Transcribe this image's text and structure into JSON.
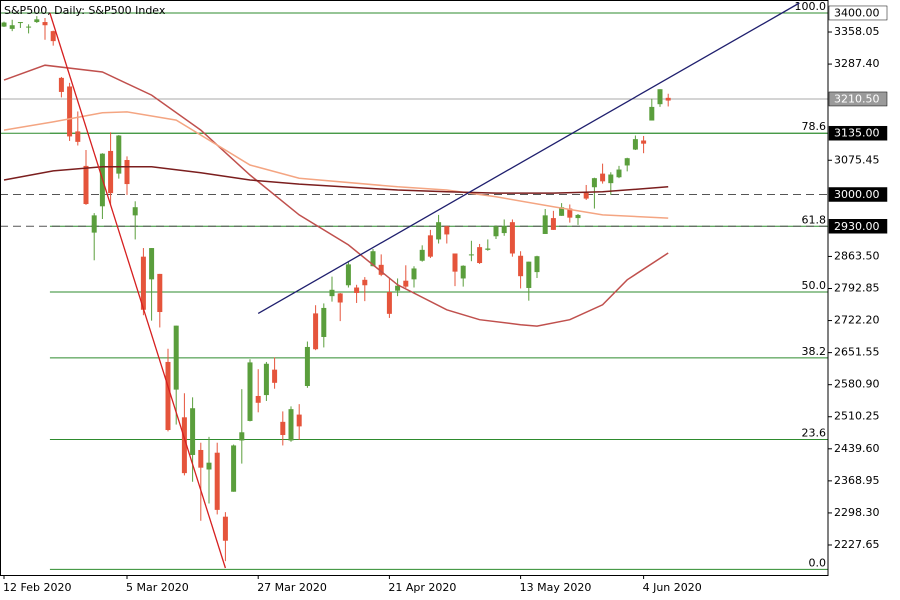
{
  "chart_data": {
    "type": "candlestick",
    "title": "S&P500, Daily:  S&P500 Index",
    "categories": [
      "12 Feb 2020",
      null,
      null,
      null,
      null,
      null,
      null,
      null,
      null,
      null,
      null,
      null,
      null,
      null,
      null,
      "5 Mar 2020",
      null,
      null,
      null,
      null,
      null,
      null,
      null,
      null,
      null,
      null,
      null,
      null,
      null,
      null,
      null,
      "27 Mar 2020",
      null,
      null,
      null,
      null,
      null,
      null,
      null,
      null,
      null,
      null,
      null,
      null,
      null,
      null,
      null,
      "21 Apr 2020",
      null,
      null,
      null,
      null,
      null,
      null,
      null,
      null,
      null,
      null,
      null,
      null,
      null,
      null,
      null,
      "13 May 2020",
      null,
      null,
      null,
      null,
      null,
      null,
      null,
      null,
      null,
      null,
      null,
      null,
      null,
      null,
      "4 Jun 2020",
      null,
      null,
      null
    ],
    "open": [
      3370,
      3365,
      3378,
      3369,
      3380,
      3380,
      3360,
      3257,
      3238,
      3139,
      3063,
      2916,
      2974,
      3096,
      3046,
      3076,
      2954,
      2863,
      2813,
      2825,
      2631,
      2570,
      2509,
      2426,
      2437,
      2394,
      2431,
      2290,
      2345,
      2458,
      2501,
      2556,
      2558,
      2614,
      2499,
      2458,
      2515,
      2578,
      2738,
      2686,
      2776,
      2782,
      2800,
      2795,
      2812,
      2842,
      2845,
      2785,
      2788,
      2810,
      2813,
      2854,
      2910,
      2901,
      2930,
      2870,
      2815,
      2868,
      2884,
      2878,
      2908,
      2915,
      2939,
      2865,
      2794,
      2829,
      2913,
      2948,
      2953,
      2969,
      2948,
      3004,
      3016,
      3046,
      3025,
      3038,
      3064,
      3099,
      3119,
      3163,
      3199,
      3213
    ],
    "high": [
      3381,
      3385,
      3380,
      3375,
      3393,
      3389,
      3361,
      3259,
      3246,
      3183,
      3098,
      2959,
      3091,
      3137,
      3131,
      3084,
      2985,
      2882,
      2882,
      2825,
      2660,
      2711,
      2562,
      2553,
      2453,
      2466,
      2453,
      2300,
      2449,
      2571,
      2637,
      2615,
      2631,
      2641,
      2522,
      2533,
      2538,
      2676,
      2756,
      2760,
      2819,
      2783,
      2852,
      2801,
      2818,
      2880,
      2868,
      2815,
      2815,
      2844,
      2842,
      2888,
      2922,
      2955,
      2931,
      2870,
      2844,
      2898,
      2891,
      2901,
      2932,
      2945,
      2945,
      2875,
      2852,
      2865,
      2968,
      2964,
      2981,
      2978,
      2957,
      3021,
      3037,
      3068,
      3049,
      3063,
      3081,
      3130,
      3129,
      3211,
      3232,
      3222
    ],
    "low": [
      3369,
      3360,
      3367,
      3355,
      3378,
      3341,
      3328,
      3214,
      3118,
      3108,
      2977,
      2855,
      2946,
      2977,
      3035,
      2999,
      2901,
      2734,
      2722,
      2707,
      2478,
      2493,
      2381,
      2367,
      2281,
      2319,
      2295,
      2192,
      2345,
      2407,
      2500,
      2520,
      2545,
      2572,
      2447,
      2455,
      2459,
      2574,
      2657,
      2663,
      2764,
      2721,
      2795,
      2761,
      2765,
      2842,
      2820,
      2728,
      2776,
      2794,
      2795,
      2852,
      2860,
      2892,
      2892,
      2798,
      2797,
      2853,
      2847,
      2876,
      2902,
      2909,
      2863,
      2793,
      2766,
      2816,
      2913,
      2922,
      2953,
      2938,
      2933,
      2988,
      2969,
      3024,
      2999,
      3036,
      3051,
      3098,
      3091,
      3163,
      3193,
      3194
    ],
    "close": [
      3379,
      3373,
      3380,
      3370,
      3386,
      3373,
      3338,
      3226,
      3128,
      3116,
      2979,
      2954,
      3090,
      3003,
      3130,
      3023,
      2972,
      2746,
      2882,
      2741,
      2481,
      2711,
      2386,
      2529,
      2398,
      2409,
      2305,
      2237,
      2447,
      2476,
      2630,
      2541,
      2627,
      2585,
      2470,
      2527,
      2489,
      2664,
      2659,
      2750,
      2790,
      2762,
      2846,
      2783,
      2800,
      2875,
      2823,
      2737,
      2799,
      2797,
      2837,
      2878,
      2863,
      2939,
      2912,
      2830,
      2843,
      2868,
      2849,
      2881,
      2930,
      2930,
      2870,
      2820,
      2852,
      2864,
      2954,
      2922,
      2972,
      2949,
      2955,
      2991,
      3036,
      3029,
      3044,
      3055,
      3080,
      3122,
      3112,
      3193,
      3232,
      3207
    ],
    "up_color": "#5a9e3c",
    "down_color": "#e5543b",
    "ylim": [
      2161.5,
      3428.6
    ],
    "yticks": [
      3358.05,
      {
        "value": 3287.4,
        "label": "3287.40"
      },
      3075.45,
      {
        "value": 2863.5,
        "label": "2863.50"
      },
      2792.85,
      {
        "value": 2722.2,
        "label": "2722.20"
      },
      2651.55,
      {
        "value": 2580.9,
        "label": "2580.90"
      },
      2510.25,
      {
        "value": 2439.6,
        "label": "2439.60"
      },
      2368.95,
      {
        "value": 2298.3,
        "label": "2298.30"
      },
      2227.65
    ],
    "lines": [
      {
        "color": "#c0504d",
        "x": [
          0,
          5,
          12,
          18,
          24,
          30,
          36,
          42,
          48,
          54,
          58,
          63,
          65,
          69,
          73,
          76,
          81
        ],
        "values": [
          3252,
          3285,
          3270,
          3219,
          3142,
          3043,
          2955,
          2889,
          2801,
          2746,
          2724,
          2713,
          2710,
          2724,
          2757,
          2812,
          2871
        ]
      },
      {
        "color": "#f4a582",
        "x": [
          0,
          6,
          12,
          15,
          21,
          30,
          36,
          48,
          54,
          60,
          67,
          73,
          81
        ],
        "values": [
          3142,
          3160,
          3180,
          3182,
          3164,
          3065,
          3036,
          3017,
          3010,
          2995,
          2973,
          2955,
          2948
        ]
      },
      {
        "color": "#7b1e1e",
        "x": [
          0,
          6,
          12,
          18,
          24,
          30,
          36,
          48,
          54,
          60,
          67,
          73,
          81
        ],
        "values": [
          3032,
          3052,
          3061,
          3061,
          3048,
          3032,
          3023,
          3010,
          3006,
          3003,
          3003,
          3006,
          3017
        ]
      }
    ],
    "trendlines": [
      {
        "color": "#d62020",
        "x": [
          5.6,
          27
        ],
        "values": [
          3400,
          2177
        ]
      },
      {
        "color": "#1f1f6e",
        "x": [
          31,
          97
        ],
        "values": [
          2738,
          3422
        ]
      }
    ],
    "fibonacci": {
      "color": "#2e8b2e",
      "levels": [
        {
          "level": {
            "value": 100,
            "label": "100.0"
          },
          "price": 3400
        },
        {
          "level": 78.6,
          "price": 3135
        },
        {
          "level": 61.8,
          "price": 2930
        },
        {
          "level": {
            "value": 50,
            "label": "50.0"
          },
          "price": 2785
        },
        {
          "level": 38.2,
          "price": 2640
        },
        {
          "level": 23.6,
          "price": 2460
        },
        {
          "level": {
            "value": 0,
            "label": "0.0"
          },
          "price": 2174
        }
      ]
    },
    "price_lines": [
      {
        "value": 3400,
        "label": "3400.00",
        "color": "#2e8b2e",
        "dashed": false,
        "box_color": "#ffffff",
        "text_color": "#000000"
      },
      {
        "value": 3210.5,
        "label": "3210.50",
        "color": "#a8a8a8",
        "dashed": false,
        "box_color": "#9a9a9a",
        "text_color": "#ffffff"
      },
      {
        "value": 3135,
        "label": "3135.00",
        "color": "#2e8b2e",
        "dashed": false,
        "box_color": "#000000",
        "text_color": "#ffffff"
      },
      {
        "value": 3000,
        "label": "3000.00",
        "color": "#555555",
        "dashed": true,
        "box_color": "#000000",
        "text_color": "#ffffff"
      },
      {
        "value": 2930,
        "label": "2930.00",
        "color": "#555555",
        "dashed": true,
        "box_color": "#000000",
        "text_color": "#ffffff"
      }
    ]
  }
}
